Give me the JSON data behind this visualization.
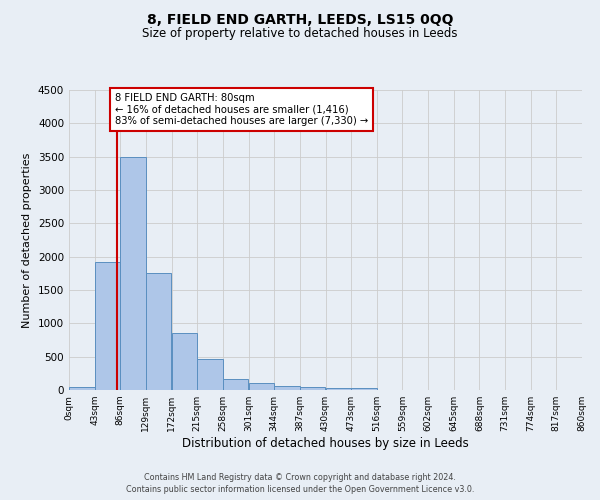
{
  "title": "8, FIELD END GARTH, LEEDS, LS15 0QQ",
  "subtitle": "Size of property relative to detached houses in Leeds",
  "xlabel": "Distribution of detached houses by size in Leeds",
  "ylabel": "Number of detached properties",
  "bin_edges": [
    0,
    43,
    86,
    129,
    172,
    215,
    258,
    301,
    344,
    387,
    430,
    473,
    516,
    559,
    602,
    645,
    688,
    731,
    774,
    817,
    860
  ],
  "bar_heights": [
    50,
    1920,
    3500,
    1760,
    850,
    460,
    165,
    100,
    60,
    50,
    35,
    25,
    0,
    0,
    0,
    0,
    0,
    0,
    0,
    0
  ],
  "bar_color": "#aec6e8",
  "bar_edge_color": "#5a8fc0",
  "ylim": [
    0,
    4500
  ],
  "yticks": [
    0,
    500,
    1000,
    1500,
    2000,
    2500,
    3000,
    3500,
    4000,
    4500
  ],
  "property_line_x": 80,
  "property_line_color": "#cc0000",
  "annotation_text": "8 FIELD END GARTH: 80sqm\n← 16% of detached houses are smaller (1,416)\n83% of semi-detached houses are larger (7,330) →",
  "annotation_box_color": "#cc0000",
  "footer_line1": "Contains HM Land Registry data © Crown copyright and database right 2024.",
  "footer_line2": "Contains public sector information licensed under the Open Government Licence v3.0.",
  "background_color": "#e8eef5",
  "plot_bg_color": "#e8eef5",
  "grid_color": "#cccccc",
  "x_tick_labels": [
    "0sqm",
    "43sqm",
    "86sqm",
    "129sqm",
    "172sqm",
    "215sqm",
    "258sqm",
    "301sqm",
    "344sqm",
    "387sqm",
    "430sqm",
    "473sqm",
    "516sqm",
    "559sqm",
    "602sqm",
    "645sqm",
    "688sqm",
    "731sqm",
    "774sqm",
    "817sqm",
    "860sqm"
  ]
}
